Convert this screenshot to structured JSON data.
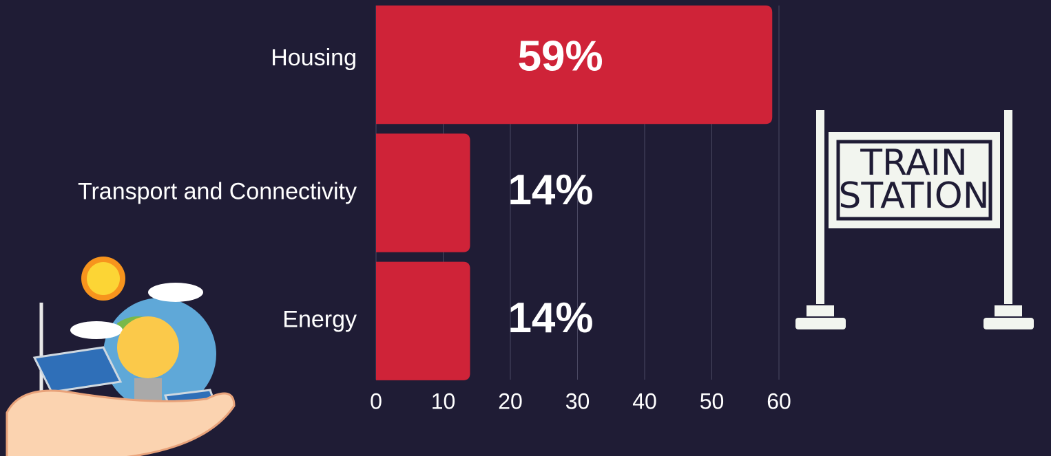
{
  "chart_data": {
    "type": "bar",
    "orientation": "horizontal",
    "categories": [
      "Housing",
      "Transport and Connectivity",
      "Energy"
    ],
    "values": [
      59,
      14,
      14
    ],
    "value_labels": [
      "59%",
      "14%",
      "14%"
    ],
    "color": "#cf2338",
    "xlim": [
      0,
      60
    ],
    "xticks": [
      0,
      10,
      20,
      30,
      40,
      50,
      60
    ],
    "grid": true
  },
  "sign": {
    "lines": [
      "TRAIN",
      "STATION"
    ]
  }
}
